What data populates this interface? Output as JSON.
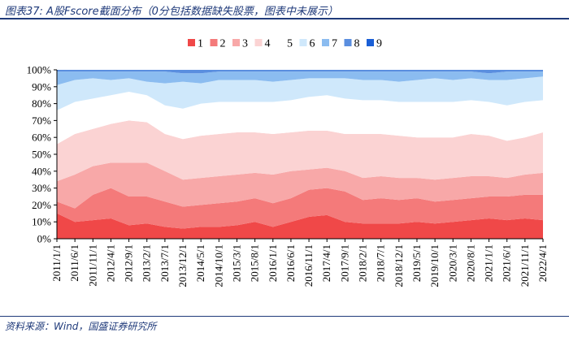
{
  "header": {
    "title": "图表37: A股Fscore截面分布（0分包括数据缺失股票，图表中未展示）"
  },
  "footer": {
    "source": "资料来源：Wind，国盛证券研究所"
  },
  "chart_data": {
    "type": "area",
    "stacked": true,
    "grid": false,
    "legend_position": "top",
    "x": [
      "2011/1/1",
      "2011/6/1",
      "2011/11/1",
      "2012/4/1",
      "2012/9/1",
      "2013/2/1",
      "2013/7/1",
      "2013/12/1",
      "2014/5/1",
      "2014/10/1",
      "2015/3/1",
      "2015/8/1",
      "2016/1/1",
      "2016/6/1",
      "2016/11/1",
      "2017/4/1",
      "2017/9/1",
      "2018/2/1",
      "2018/7/1",
      "2018/12/1",
      "2019/5/1",
      "2019/10/1",
      "2020/3/1",
      "2020/8/1",
      "2021/1/1",
      "2021/6/1",
      "2021/11/1",
      "2022/4/1"
    ],
    "ylim": [
      0,
      100
    ],
    "yticks": [
      "0%",
      "10%",
      "20%",
      "30%",
      "40%",
      "50%",
      "60%",
      "70%",
      "80%",
      "90%",
      "100%"
    ],
    "series": [
      {
        "name": "1",
        "color": "#f04848",
        "values": [
          15,
          10,
          11,
          12,
          8,
          9,
          7,
          6,
          7,
          7,
          8,
          10,
          7,
          10,
          13,
          14,
          10,
          9,
          9,
          9,
          10,
          9,
          10,
          11,
          12,
          11,
          12,
          11
        ]
      },
      {
        "name": "2",
        "color": "#f47a7a",
        "values": [
          7,
          8,
          15,
          18,
          17,
          16,
          15,
          13,
          13,
          14,
          14,
          14,
          14,
          14,
          16,
          16,
          18,
          14,
          15,
          14,
          14,
          13,
          13,
          13,
          13,
          14,
          14,
          15
        ]
      },
      {
        "name": "3",
        "color": "#f8a8a8",
        "values": [
          12,
          20,
          17,
          15,
          20,
          20,
          18,
          16,
          16,
          16,
          16,
          15,
          17,
          16,
          12,
          12,
          12,
          13,
          13,
          13,
          12,
          13,
          13,
          13,
          12,
          11,
          12,
          13
        ]
      },
      {
        "name": "4",
        "color": "#fbd3d3",
        "values": [
          22,
          24,
          22,
          23,
          25,
          24,
          22,
          24,
          25,
          25,
          25,
          24,
          24,
          23,
          23,
          22,
          22,
          26,
          25,
          25,
          24,
          25,
          24,
          25,
          24,
          22,
          22,
          24
        ]
      },
      {
        "name": "5",
        "color": "#ffffff",
        "values": [
          20,
          19,
          18,
          17,
          17,
          16,
          17,
          18,
          19,
          19,
          18,
          18,
          19,
          19,
          20,
          21,
          21,
          20,
          20,
          20,
          21,
          21,
          21,
          20,
          20,
          21,
          21,
          19
        ]
      },
      {
        "name": "6",
        "color": "#cfe8fb",
        "values": [
          15,
          13,
          12,
          9,
          8,
          8,
          13,
          16,
          12,
          13,
          13,
          13,
          12,
          12,
          11,
          10,
          12,
          12,
          12,
          12,
          13,
          14,
          13,
          13,
          13,
          15,
          14,
          14
        ]
      },
      {
        "name": "7",
        "color": "#8bbcf0",
        "values": [
          8,
          5,
          4,
          5,
          4,
          6,
          7,
          5,
          6,
          5,
          5,
          5,
          6,
          5,
          4,
          4,
          4,
          5,
          5,
          6,
          5,
          4,
          5,
          4,
          4,
          5,
          4,
          3
        ]
      },
      {
        "name": "8",
        "color": "#5a8edf",
        "values": [
          1,
          1,
          1,
          1,
          1,
          1,
          1,
          2,
          2,
          1,
          1,
          1,
          1,
          1,
          1,
          1,
          1,
          1,
          1,
          1,
          1,
          1,
          1,
          1,
          2,
          1,
          1,
          1
        ]
      },
      {
        "name": "9",
        "color": "#1a5fd6",
        "values": [
          0,
          0,
          0,
          0,
          0,
          0,
          0,
          0,
          0,
          0,
          0,
          0,
          0,
          0,
          0,
          0,
          0,
          0,
          0,
          0,
          0,
          0,
          0,
          0,
          0,
          0,
          0,
          0
        ]
      }
    ]
  }
}
